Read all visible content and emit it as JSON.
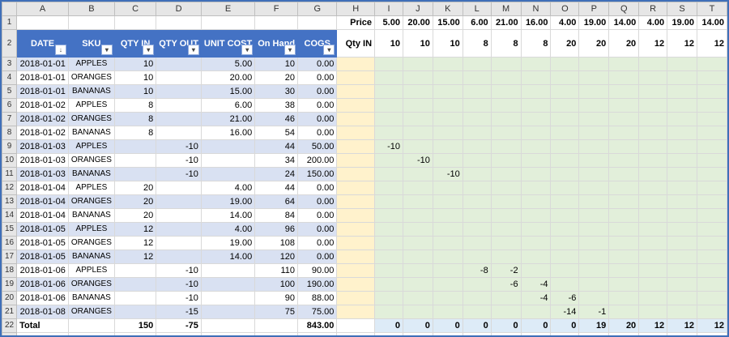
{
  "columns": [
    "A",
    "B",
    "C",
    "D",
    "E",
    "F",
    "G",
    "H",
    "I",
    "J",
    "K",
    "L",
    "M",
    "N",
    "O",
    "P",
    "Q",
    "R",
    "S",
    "T"
  ],
  "row_numbers": [
    "1",
    "2",
    "3",
    "4",
    "5",
    "6",
    "7",
    "8",
    "9",
    "10",
    "11",
    "12",
    "13",
    "14",
    "15",
    "16",
    "17",
    "18",
    "19",
    "20",
    "21",
    "22"
  ],
  "table_headers": {
    "date": "DATE",
    "sku": "SKU",
    "qty_in": "QTY IN",
    "qty_out": "QTY OUT",
    "unit_cost": "UNIT COST",
    "on_hand": "On Hand",
    "cogs": "COGS"
  },
  "filter_icons": {
    "date": "sort-filter-icon",
    "other": "dropdown-icon"
  },
  "price_label": "Price",
  "qty_in_label": "Qty IN",
  "prices": [
    "5.00",
    "20.00",
    "15.00",
    "6.00",
    "21.00",
    "16.00",
    "4.00",
    "19.00",
    "14.00",
    "4.00",
    "19.00",
    "14.00"
  ],
  "qty_ins": [
    "10",
    "10",
    "10",
    "8",
    "8",
    "8",
    "20",
    "20",
    "20",
    "12",
    "12",
    "12"
  ],
  "rows": [
    {
      "date": "2018-01-01",
      "sku": "APPLES",
      "qty_in": "10",
      "qty_out": "",
      "unit_cost": "5.00",
      "on_hand": "10",
      "cogs": "0.00",
      "grid": [
        "",
        "",
        "",
        "",
        "",
        "",
        "",
        "",
        "",
        "",
        "",
        ""
      ]
    },
    {
      "date": "2018-01-01",
      "sku": "ORANGES",
      "qty_in": "10",
      "qty_out": "",
      "unit_cost": "20.00",
      "on_hand": "20",
      "cogs": "0.00",
      "grid": [
        "",
        "",
        "",
        "",
        "",
        "",
        "",
        "",
        "",
        "",
        "",
        ""
      ]
    },
    {
      "date": "2018-01-01",
      "sku": "BANANAS",
      "qty_in": "10",
      "qty_out": "",
      "unit_cost": "15.00",
      "on_hand": "30",
      "cogs": "0.00",
      "grid": [
        "",
        "",
        "",
        "",
        "",
        "",
        "",
        "",
        "",
        "",
        "",
        ""
      ]
    },
    {
      "date": "2018-01-02",
      "sku": "APPLES",
      "qty_in": "8",
      "qty_out": "",
      "unit_cost": "6.00",
      "on_hand": "38",
      "cogs": "0.00",
      "grid": [
        "",
        "",
        "",
        "",
        "",
        "",
        "",
        "",
        "",
        "",
        "",
        ""
      ]
    },
    {
      "date": "2018-01-02",
      "sku": "ORANGES",
      "qty_in": "8",
      "qty_out": "",
      "unit_cost": "21.00",
      "on_hand": "46",
      "cogs": "0.00",
      "grid": [
        "",
        "",
        "",
        "",
        "",
        "",
        "",
        "",
        "",
        "",
        "",
        ""
      ]
    },
    {
      "date": "2018-01-02",
      "sku": "BANANAS",
      "qty_in": "8",
      "qty_out": "",
      "unit_cost": "16.00",
      "on_hand": "54",
      "cogs": "0.00",
      "grid": [
        "",
        "",
        "",
        "",
        "",
        "",
        "",
        "",
        "",
        "",
        "",
        ""
      ]
    },
    {
      "date": "2018-01-03",
      "sku": "APPLES",
      "qty_in": "",
      "qty_out": "-10",
      "unit_cost": "",
      "on_hand": "44",
      "cogs": "50.00",
      "grid": [
        "-10",
        "",
        "",
        "",
        "",
        "",
        "",
        "",
        "",
        "",
        "",
        ""
      ]
    },
    {
      "date": "2018-01-03",
      "sku": "ORANGES",
      "qty_in": "",
      "qty_out": "-10",
      "unit_cost": "",
      "on_hand": "34",
      "cogs": "200.00",
      "grid": [
        "",
        "-10",
        "",
        "",
        "",
        "",
        "",
        "",
        "",
        "",
        "",
        ""
      ]
    },
    {
      "date": "2018-01-03",
      "sku": "BANANAS",
      "qty_in": "",
      "qty_out": "-10",
      "unit_cost": "",
      "on_hand": "24",
      "cogs": "150.00",
      "grid": [
        "",
        "",
        "-10",
        "",
        "",
        "",
        "",
        "",
        "",
        "",
        "",
        ""
      ]
    },
    {
      "date": "2018-01-04",
      "sku": "APPLES",
      "qty_in": "20",
      "qty_out": "",
      "unit_cost": "4.00",
      "on_hand": "44",
      "cogs": "0.00",
      "grid": [
        "",
        "",
        "",
        "",
        "",
        "",
        "",
        "",
        "",
        "",
        "",
        ""
      ]
    },
    {
      "date": "2018-01-04",
      "sku": "ORANGES",
      "qty_in": "20",
      "qty_out": "",
      "unit_cost": "19.00",
      "on_hand": "64",
      "cogs": "0.00",
      "grid": [
        "",
        "",
        "",
        "",
        "",
        "",
        "",
        "",
        "",
        "",
        "",
        ""
      ]
    },
    {
      "date": "2018-01-04",
      "sku": "BANANAS",
      "qty_in": "20",
      "qty_out": "",
      "unit_cost": "14.00",
      "on_hand": "84",
      "cogs": "0.00",
      "grid": [
        "",
        "",
        "",
        "",
        "",
        "",
        "",
        "",
        "",
        "",
        "",
        ""
      ]
    },
    {
      "date": "2018-01-05",
      "sku": "APPLES",
      "qty_in": "12",
      "qty_out": "",
      "unit_cost": "4.00",
      "on_hand": "96",
      "cogs": "0.00",
      "grid": [
        "",
        "",
        "",
        "",
        "",
        "",
        "",
        "",
        "",
        "",
        "",
        ""
      ]
    },
    {
      "date": "2018-01-05",
      "sku": "ORANGES",
      "qty_in": "12",
      "qty_out": "",
      "unit_cost": "19.00",
      "on_hand": "108",
      "cogs": "0.00",
      "grid": [
        "",
        "",
        "",
        "",
        "",
        "",
        "",
        "",
        "",
        "",
        "",
        ""
      ]
    },
    {
      "date": "2018-01-05",
      "sku": "BANANAS",
      "qty_in": "12",
      "qty_out": "",
      "unit_cost": "14.00",
      "on_hand": "120",
      "cogs": "0.00",
      "grid": [
        "",
        "",
        "",
        "",
        "",
        "",
        "",
        "",
        "",
        "",
        "",
        ""
      ]
    },
    {
      "date": "2018-01-06",
      "sku": "APPLES",
      "qty_in": "",
      "qty_out": "-10",
      "unit_cost": "",
      "on_hand": "110",
      "cogs": "90.00",
      "grid": [
        "",
        "",
        "",
        "-8",
        "-2",
        "",
        "",
        "",
        "",
        "",
        "",
        ""
      ]
    },
    {
      "date": "2018-01-06",
      "sku": "ORANGES",
      "qty_in": "",
      "qty_out": "-10",
      "unit_cost": "",
      "on_hand": "100",
      "cogs": "190.00",
      "grid": [
        "",
        "",
        "",
        "",
        "-6",
        "-4",
        "",
        "",
        "",
        "",
        "",
        ""
      ]
    },
    {
      "date": "2018-01-06",
      "sku": "BANANAS",
      "qty_in": "",
      "qty_out": "-10",
      "unit_cost": "",
      "on_hand": "90",
      "cogs": "88.00",
      "grid": [
        "",
        "",
        "",
        "",
        "",
        "-4",
        "-6",
        "",
        "",
        "",
        "",
        ""
      ]
    },
    {
      "date": "2018-01-08",
      "sku": "ORANGES",
      "qty_in": "",
      "qty_out": "-15",
      "unit_cost": "",
      "on_hand": "75",
      "cogs": "75.00",
      "grid": [
        "",
        "",
        "",
        "",
        "",
        "",
        "-14",
        "-1",
        "",
        "",
        "",
        ""
      ]
    }
  ],
  "totals": {
    "label": "Total",
    "qty_in": "150",
    "qty_out": "-75",
    "cogs": "843.00",
    "grid": [
      "0",
      "0",
      "0",
      "0",
      "0",
      "0",
      "0",
      "19",
      "20",
      "12",
      "12",
      "12"
    ]
  },
  "colors": {
    "header_blue": "#4472c4",
    "band": "#d9e1f2",
    "tan": "#fff2cc",
    "green": "#e2efda",
    "totals_blue": "#ddebf7"
  }
}
